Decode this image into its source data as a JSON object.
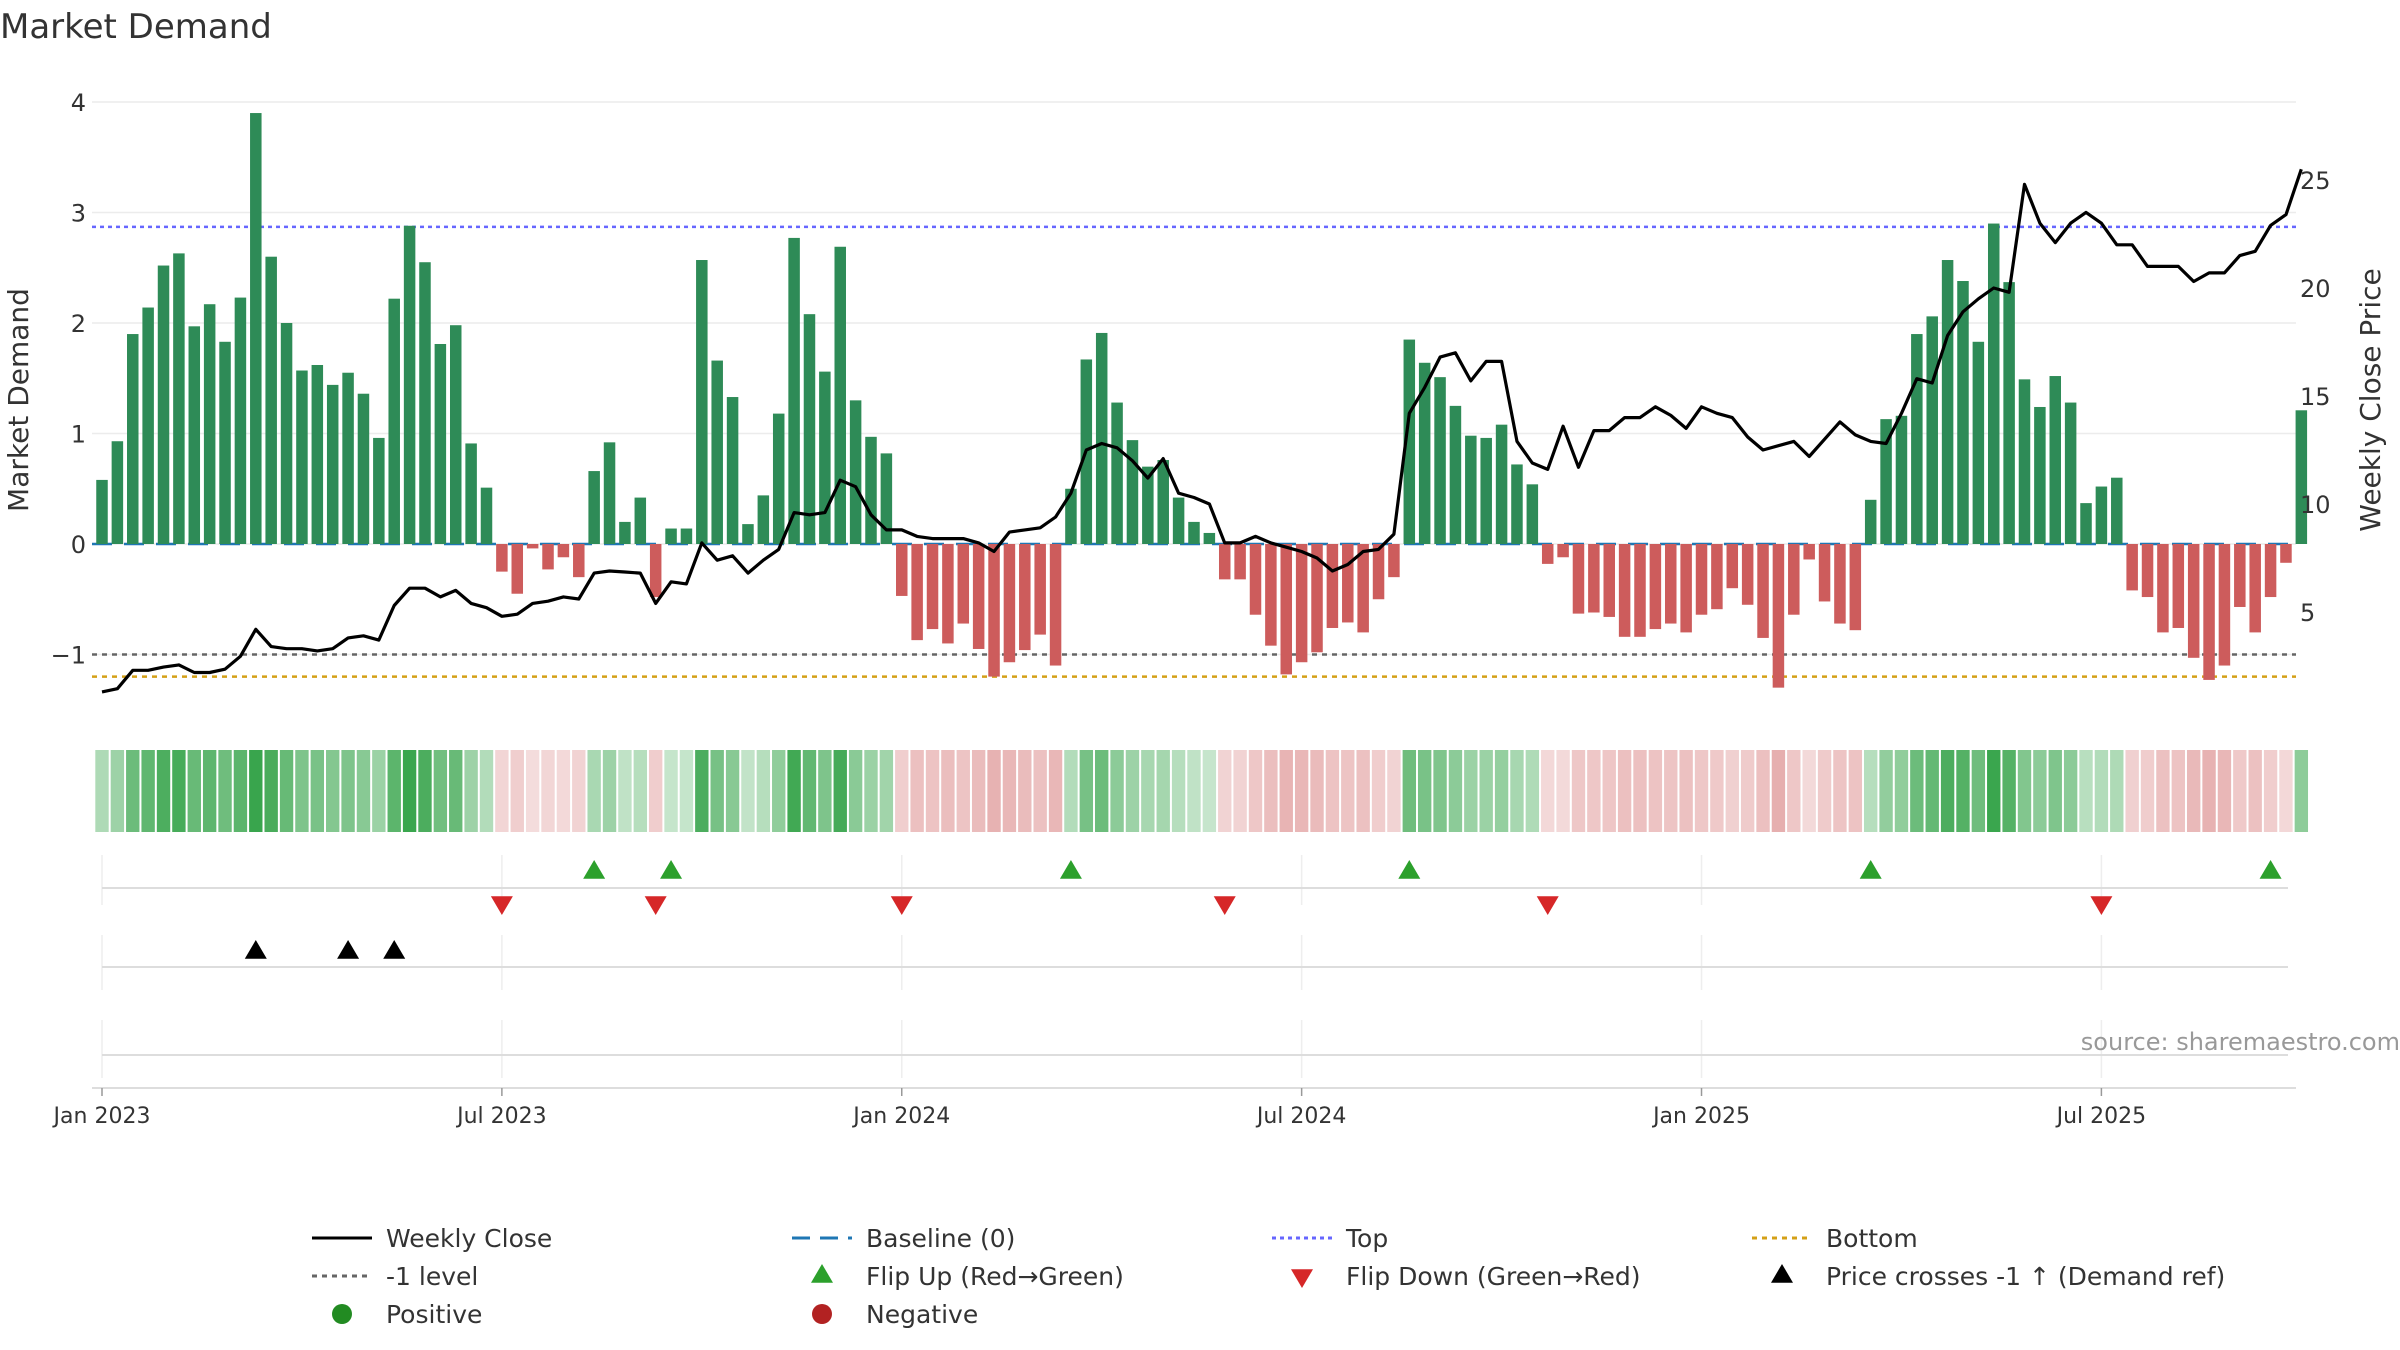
{
  "title": "Market Demand",
  "source": "source: sharemaestro.com",
  "chart_data": {
    "type": "bar",
    "title": "Market Demand",
    "ylabel_left": "Market Demand",
    "ylabel_right": "Weekly Close Price",
    "ylim_left": [
      -1.6,
      4.1
    ],
    "ylim_right": [
      0,
      29
    ],
    "yticks_left": [
      {
        "v": 4,
        "label": "4"
      },
      {
        "v": 3,
        "label": "3"
      },
      {
        "v": 2,
        "label": "2"
      },
      {
        "v": 1,
        "label": "1"
      },
      {
        "v": 0,
        "label": "0"
      },
      {
        "v": -1,
        "label": "−1"
      }
    ],
    "yticks_right": [
      {
        "v": 25,
        "label": "25"
      },
      {
        "v": 20,
        "label": "20"
      },
      {
        "v": 15,
        "label": "15"
      },
      {
        "v": 10,
        "label": "10"
      },
      {
        "v": 5,
        "label": "5"
      }
    ],
    "xticks": [
      {
        "week": 1,
        "label": "Jan 2023"
      },
      {
        "week": 27,
        "label": "Jul 2023"
      },
      {
        "week": 53,
        "label": "Jan 2024"
      },
      {
        "week": 79,
        "label": "Jul 2024"
      },
      {
        "week": 105,
        "label": "Jan 2025"
      },
      {
        "week": 131,
        "label": "Jul 2025"
      }
    ],
    "reference_lines": {
      "top": 2.87,
      "bottom": -1.2,
      "minus_one": -1,
      "baseline": 0
    },
    "demand": [
      0.58,
      0.93,
      1.9,
      2.14,
      2.52,
      2.63,
      1.97,
      2.17,
      1.83,
      2.23,
      3.9,
      2.6,
      2.0,
      1.57,
      1.62,
      1.44,
      1.55,
      1.36,
      0.96,
      2.22,
      2.88,
      2.55,
      1.81,
      1.98,
      0.91,
      0.51,
      -0.25,
      -0.45,
      -0.04,
      -0.23,
      -0.12,
      -0.3,
      0.66,
      0.92,
      0.2,
      0.42,
      -0.48,
      0.14,
      0.14,
      2.57,
      1.66,
      1.33,
      0.18,
      0.44,
      1.18,
      2.77,
      2.08,
      1.56,
      2.69,
      1.3,
      0.97,
      0.82,
      -0.47,
      -0.87,
      -0.77,
      -0.9,
      -0.72,
      -0.95,
      -1.2,
      -1.07,
      -0.96,
      -0.82,
      -1.1,
      0.5,
      1.67,
      1.91,
      1.28,
      0.94,
      0.7,
      0.76,
      0.42,
      0.2,
      0.1,
      -0.32,
      -0.32,
      -0.64,
      -0.92,
      -1.18,
      -1.07,
      -0.98,
      -0.76,
      -0.71,
      -0.8,
      -0.5,
      -0.3,
      1.85,
      1.64,
      1.51,
      1.25,
      0.98,
      0.96,
      1.08,
      0.72,
      0.54,
      -0.18,
      -0.12,
      -0.63,
      -0.62,
      -0.66,
      -0.84,
      -0.84,
      -0.77,
      -0.72,
      -0.8,
      -0.64,
      -0.59,
      -0.4,
      -0.55,
      -0.85,
      -1.3,
      -0.64,
      -0.14,
      -0.52,
      -0.72,
      -0.78,
      0.4,
      1.13,
      1.16,
      1.9,
      2.06,
      2.57,
      2.38,
      1.83,
      2.9,
      2.37,
      1.49,
      1.24,
      1.52,
      1.28,
      0.37,
      0.52,
      0.6,
      -0.42,
      -0.48,
      -0.8,
      -0.76,
      -1.03,
      -1.23,
      -1.1,
      -0.57,
      -0.8,
      -0.48,
      -0.17,
      1.21
    ],
    "weekly_close": [
      1.3,
      1.45,
      2.3,
      2.3,
      2.45,
      2.55,
      2.2,
      2.2,
      2.35,
      2.95,
      4.2,
      3.4,
      3.3,
      3.3,
      3.2,
      3.3,
      3.8,
      3.9,
      3.7,
      5.3,
      6.1,
      6.1,
      5.7,
      6.0,
      5.4,
      5.2,
      4.8,
      4.9,
      5.4,
      5.5,
      5.7,
      5.6,
      6.8,
      6.9,
      6.85,
      6.8,
      5.4,
      6.4,
      6.3,
      8.2,
      7.4,
      7.6,
      6.8,
      7.4,
      7.9,
      9.6,
      9.5,
      9.6,
      11.1,
      10.8,
      9.5,
      8.8,
      8.8,
      8.5,
      8.4,
      8.4,
      8.4,
      8.2,
      7.8,
      8.7,
      8.8,
      8.9,
      9.4,
      10.5,
      12.5,
      12.8,
      12.6,
      12.0,
      11.2,
      12.1,
      10.5,
      10.3,
      10.0,
      8.2,
      8.2,
      8.5,
      8.2,
      8.0,
      7.8,
      7.5,
      6.9,
      7.2,
      7.8,
      7.9,
      8.6,
      14.2,
      15.4,
      16.8,
      17.0,
      15.7,
      16.6,
      16.6,
      12.9,
      11.9,
      11.6,
      13.6,
      11.7,
      13.4,
      13.4,
      14.0,
      14.0,
      14.5,
      14.1,
      13.5,
      14.5,
      14.2,
      14.0,
      13.1,
      12.5,
      12.7,
      12.9,
      12.2,
      13.0,
      13.8,
      13.2,
      12.9,
      12.8,
      14.2,
      15.8,
      15.6,
      17.8,
      18.9,
      19.5,
      20.0,
      19.8,
      24.8,
      23.0,
      22.1,
      23.0,
      23.5,
      23.0,
      22.0,
      22.0,
      21.0,
      21.0,
      21.0,
      20.3,
      20.7,
      20.7,
      21.5,
      21.7,
      22.9,
      23.4,
      25.5
    ]
  },
  "flips_up_weeks": [
    33,
    38,
    64,
    86,
    116,
    142
  ],
  "flips_down_weeks": [
    27,
    37,
    53,
    74,
    95,
    131
  ],
  "price_cross_weeks": [
    11,
    17,
    20
  ],
  "colors": {
    "pos_bar": "#2e8b57",
    "neg_bar": "#cd5c5c",
    "price": "#000000",
    "top": "#6666ff",
    "bottom": "#d4a017",
    "minus_one": "#666666",
    "baseline": "#1f77b4",
    "flip_up": "#2ca02c",
    "flip_down": "#d62728",
    "positive_dot": "#228b22",
    "negative_dot": "#b22222"
  },
  "legend": [
    {
      "label": "Weekly Close",
      "symbol": "solid-line"
    },
    {
      "label": "Baseline (0)",
      "symbol": "dash-blue"
    },
    {
      "label": "Top",
      "symbol": "dot-purple"
    },
    {
      "label": "Bottom",
      "symbol": "dot-gold"
    },
    {
      "label": "-1 level",
      "symbol": "dot-gray"
    },
    {
      "label": "Flip Up (Red→Green)",
      "symbol": "tri-up-green"
    },
    {
      "label": "Flip Down (Green→Red)",
      "symbol": "tri-down-red"
    },
    {
      "label": "Price crosses -1 ↑ (Demand ref)",
      "symbol": "tri-up-black"
    },
    {
      "label": "Positive",
      "symbol": "dot-green"
    },
    {
      "label": "Negative",
      "symbol": "dot-red"
    }
  ]
}
